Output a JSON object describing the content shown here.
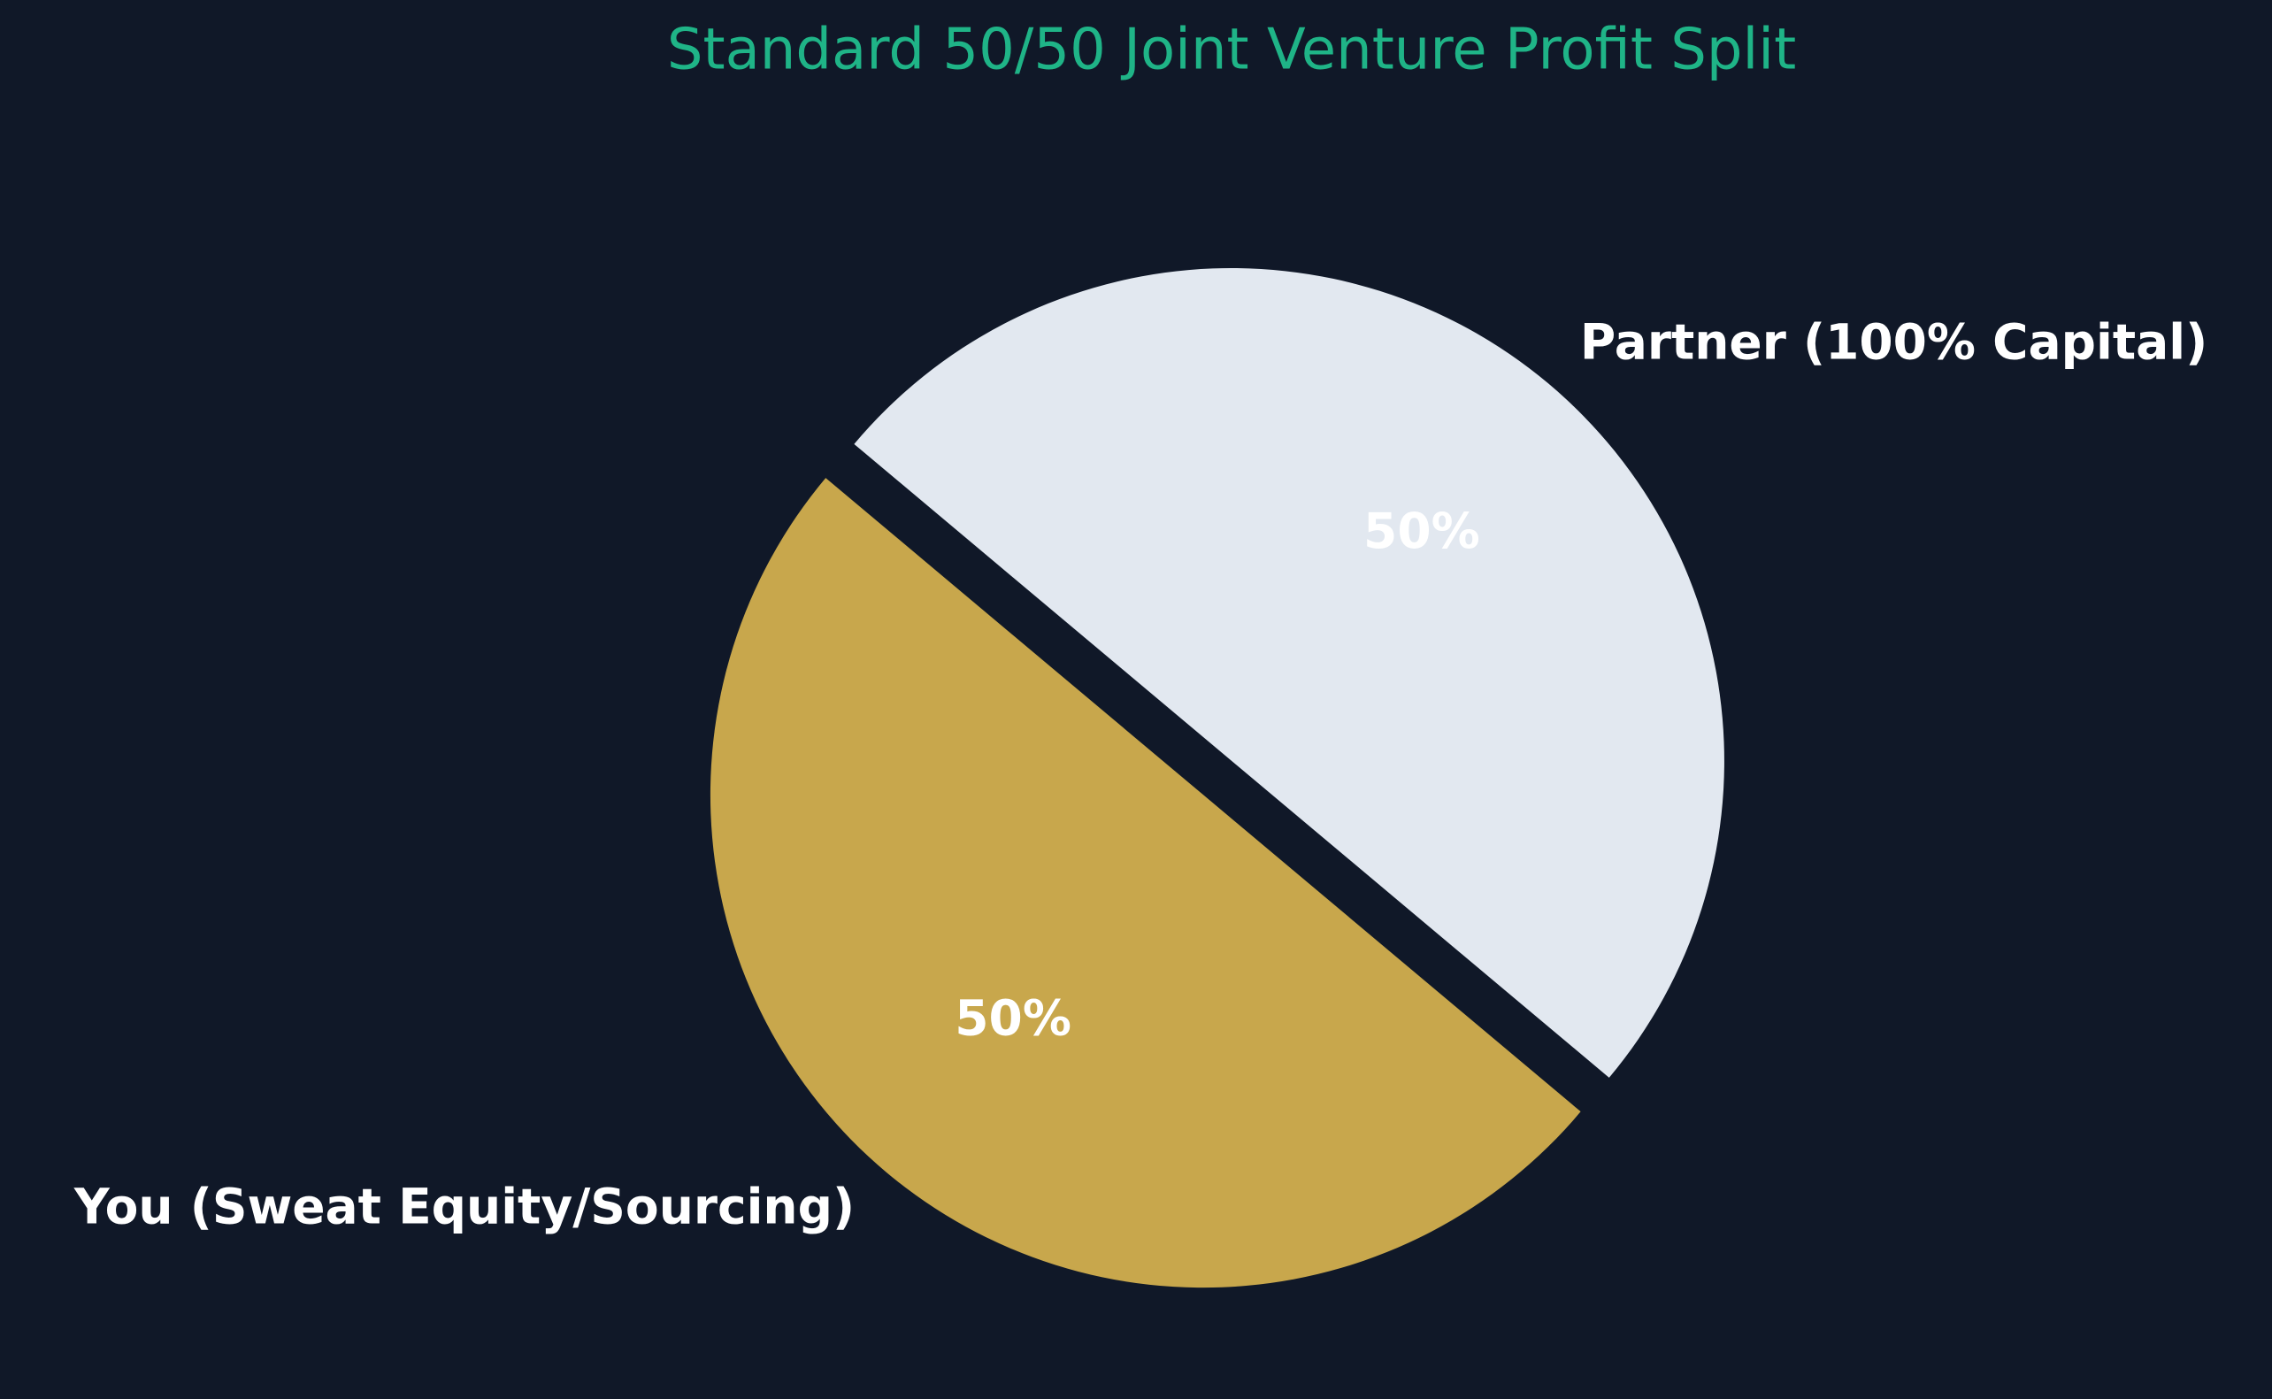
{
  "chart_data": {
    "type": "pie",
    "title": "Standard 50/50 Joint Venture Profit Split",
    "categories": [
      "Partner (100% Capital)",
      "You (Sweat Equity/Sourcing)"
    ],
    "values": [
      50,
      50
    ],
    "value_labels": [
      "50%",
      "50%"
    ],
    "colors": [
      "#e2e8f0",
      "#c8a74c"
    ],
    "startangle": -40
  }
}
